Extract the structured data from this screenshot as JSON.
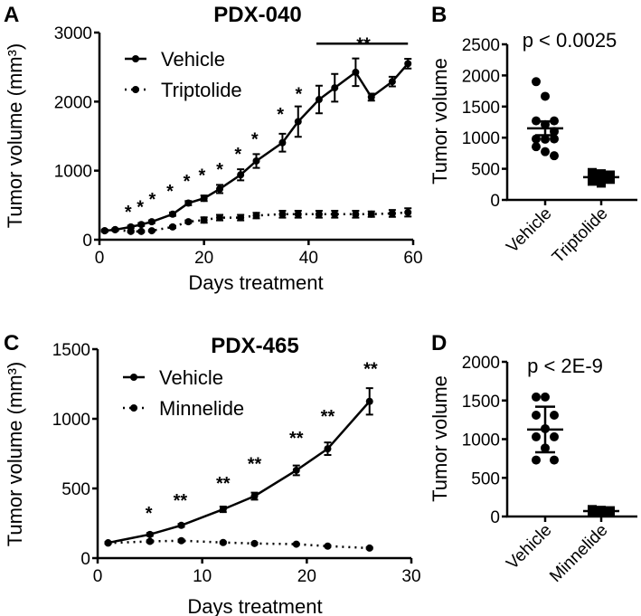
{
  "chart_data": [
    {
      "panel": "A",
      "type": "line",
      "title": "PDX-040",
      "xlabel": "Days treatment",
      "ylabel": "Tumor volume (mm³)",
      "xlim": [
        0,
        60
      ],
      "ylim": [
        0,
        3000
      ],
      "xticks": [
        0,
        20,
        40,
        60
      ],
      "yticks": [
        0,
        1000,
        2000,
        3000
      ],
      "legend": "top-left",
      "x": [
        1,
        3,
        6,
        8,
        10,
        14,
        17,
        20,
        23,
        27,
        30,
        35,
        38,
        42,
        45,
        49,
        52,
        56,
        59
      ],
      "series": [
        {
          "name": "Vehicle",
          "style": "solid",
          "values": [
            130,
            145,
            185,
            220,
            260,
            370,
            530,
            600,
            735,
            940,
            1140,
            1405,
            1710,
            2030,
            2200,
            2425,
            2065,
            2290,
            2550
          ],
          "error": [
            15,
            15,
            20,
            20,
            20,
            25,
            30,
            40,
            60,
            80,
            100,
            130,
            220,
            200,
            200,
            200,
            50,
            70,
            70
          ]
        },
        {
          "name": "Triptolide",
          "style": "dotted",
          "values": [
            130,
            145,
            120,
            120,
            130,
            185,
            260,
            285,
            320,
            320,
            350,
            370,
            370,
            370,
            370,
            370,
            370,
            380,
            395
          ],
          "error": [
            10,
            10,
            10,
            10,
            10,
            15,
            20,
            40,
            40,
            40,
            40,
            50,
            50,
            50,
            50,
            50,
            40,
            50,
            60
          ]
        }
      ],
      "annotations": [
        {
          "text": "*",
          "x": 5.5,
          "y": 500
        },
        {
          "text": "*",
          "x": 7.8,
          "y": 570
        },
        {
          "text": "*",
          "x": 10.1,
          "y": 680
        },
        {
          "text": "*",
          "x": 13.5,
          "y": 800
        },
        {
          "text": "*",
          "x": 16.7,
          "y": 940
        },
        {
          "text": "*",
          "x": 19.6,
          "y": 1030
        },
        {
          "text": "*",
          "x": 23,
          "y": 1115
        },
        {
          "text": "*",
          "x": 26.5,
          "y": 1335
        },
        {
          "text": "*",
          "x": 29.7,
          "y": 1550
        },
        {
          "text": "*",
          "x": 34.6,
          "y": 1910
        },
        {
          "text": "*",
          "x": 38.1,
          "y": 2205
        },
        {
          "text": "**",
          "x": 50.5,
          "y": 2930
        }
      ],
      "sig_bar": {
        "x": [
          41.5,
          59
        ],
        "y": 2840
      }
    },
    {
      "panel": "B",
      "type": "scatter",
      "title": "p < 0.0025",
      "ylabel": "Tumor volume",
      "ylim": [
        0,
        2500
      ],
      "yticks": [
        0,
        500,
        1000,
        1500,
        2000,
        2500
      ],
      "categories": [
        "Vehicle",
        "Triptolide"
      ],
      "points": [
        [
          1900,
          1665,
          1270,
          1270,
          1210,
          1100,
          980,
          975,
          980,
          855,
          775,
          710
        ],
        [
          440,
          420,
          400,
          380,
          350,
          330,
          300,
          270
        ]
      ],
      "mean": [
        1150,
        365
      ],
      "error": [
        110,
        40
      ]
    },
    {
      "panel": "C",
      "type": "line",
      "title": "PDX-465",
      "xlabel": "Days treatment",
      "ylabel": "Tumor volume (mm³)",
      "xlim": [
        0,
        30
      ],
      "ylim": [
        0,
        1500
      ],
      "xticks": [
        0,
        10,
        20,
        30
      ],
      "yticks": [
        0,
        500,
        1000,
        1500
      ],
      "legend": "top-left",
      "x": [
        1,
        5,
        8,
        12,
        15,
        19,
        22,
        26
      ],
      "series": [
        {
          "name": "Vehicle",
          "style": "solid",
          "values": [
            110,
            170,
            235,
            350,
            445,
            630,
            785,
            1125
          ],
          "error": [
            5,
            10,
            10,
            20,
            25,
            35,
            45,
            95
          ]
        },
        {
          "name": "Minnelide",
          "style": "dotted",
          "values": [
            108,
            120,
            125,
            112,
            105,
            100,
            86,
            72
          ],
          "error": [
            5,
            8,
            8,
            6,
            5,
            5,
            5,
            5
          ]
        }
      ],
      "annotations": [
        {
          "text": "*",
          "x": 4.9,
          "y": 370
        },
        {
          "text": "**",
          "x": 7.9,
          "y": 460
        },
        {
          "text": "**",
          "x": 12,
          "y": 585
        },
        {
          "text": "**",
          "x": 15,
          "y": 725
        },
        {
          "text": "**",
          "x": 19,
          "y": 910
        },
        {
          "text": "**",
          "x": 22,
          "y": 1065
        },
        {
          "text": "**",
          "x": 26.1,
          "y": 1405
        }
      ]
    },
    {
      "panel": "D",
      "type": "scatter",
      "title": "p < 2E-9",
      "ylabel": "Tumor volume",
      "ylim": [
        0,
        2000
      ],
      "yticks": [
        0,
        500,
        1000,
        1500,
        2000
      ],
      "categories": [
        "Vehicle",
        "Minnelide"
      ],
      "points": [
        [
          1545,
          1545,
          1310,
          1310,
          1135,
          1030,
          1030,
          885,
          730,
          730
        ],
        [
          90,
          80,
          75,
          70,
          65,
          60,
          60,
          55
        ]
      ],
      "mean": [
        1125,
        70
      ],
      "error": [
        295,
        15
      ]
    }
  ]
}
